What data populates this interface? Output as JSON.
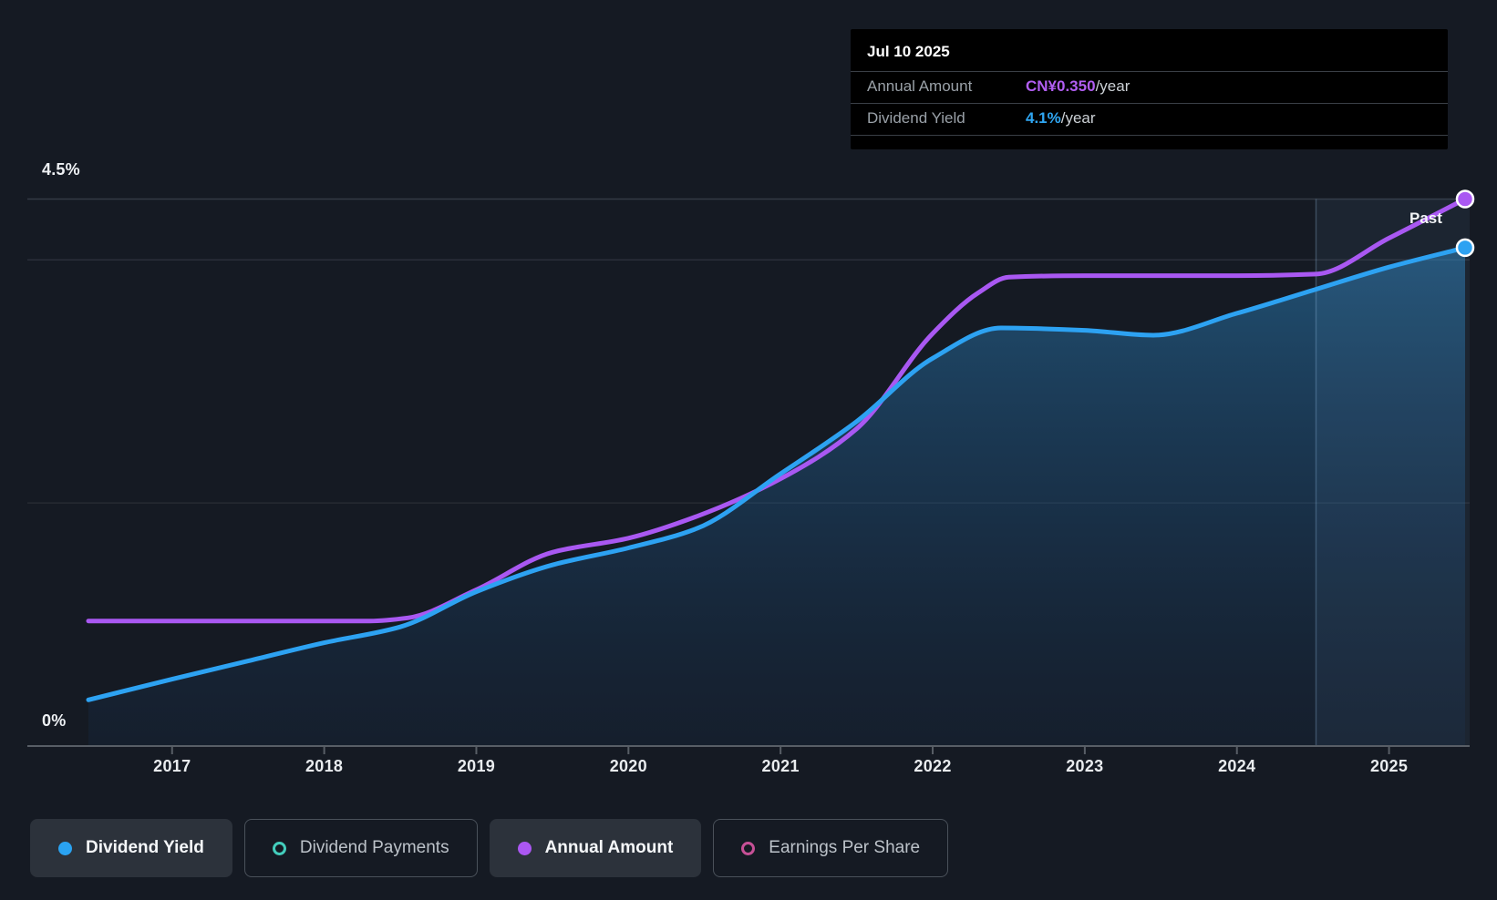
{
  "tooltip": {
    "date": "Jul 10 2025",
    "rows": [
      {
        "label": "Annual Amount",
        "value": "CN¥0.350",
        "suffix": "/year",
        "value_color": "#b15ef2"
      },
      {
        "label": "Dividend Yield",
        "value": "4.1%",
        "suffix": "/year",
        "value_color": "#2fa6f2"
      }
    ]
  },
  "chart_data": {
    "type": "line",
    "x_axis": {
      "ticks": [
        2017,
        2018,
        2019,
        2020,
        2021,
        2022,
        2023,
        2024,
        2025
      ],
      "range": [
        2016.45,
        2025.5
      ]
    },
    "y_axis": {
      "max_label": "4.5%",
      "min_label": "0%",
      "unit": "%",
      "range": [
        0,
        4.5
      ],
      "gridlines_pct": [
        4.5,
        4.0,
        2.0,
        0
      ]
    },
    "past_label": "Past",
    "past_divider_year": 2024.52,
    "series": [
      {
        "name": "Dividend Yield",
        "type": "area-line",
        "unit": "%",
        "color": "#2da2f2",
        "points": [
          [
            2016.45,
            0.38
          ],
          [
            2017,
            0.55
          ],
          [
            2017.5,
            0.7
          ],
          [
            2018,
            0.85
          ],
          [
            2018.5,
            0.98
          ],
          [
            2019,
            1.27
          ],
          [
            2019.5,
            1.49
          ],
          [
            2020,
            1.63
          ],
          [
            2020.45,
            1.79
          ],
          [
            2021,
            2.24
          ],
          [
            2021.5,
            2.67
          ],
          [
            2022,
            3.19
          ],
          [
            2022.45,
            3.44
          ],
          [
            2023,
            3.42
          ],
          [
            2023.45,
            3.38
          ],
          [
            2024,
            3.56
          ],
          [
            2024.5,
            3.75
          ],
          [
            2025,
            3.94
          ],
          [
            2025.5,
            4.1
          ]
        ]
      },
      {
        "name": "Annual Amount",
        "type": "line",
        "unit": "CN¥/year",
        "color": "#a958f2",
        "axis_max": 0.35,
        "points": [
          [
            2016.45,
            0.08
          ],
          [
            2018.3,
            0.08
          ],
          [
            2018.55,
            0.082
          ],
          [
            2019,
            0.1
          ],
          [
            2019.5,
            0.124
          ],
          [
            2020,
            0.133
          ],
          [
            2020.45,
            0.147
          ],
          [
            2021,
            0.171
          ],
          [
            2021.5,
            0.203
          ],
          [
            2022,
            0.264
          ],
          [
            2022.3,
            0.29
          ],
          [
            2022.5,
            0.3
          ],
          [
            2023,
            0.301
          ],
          [
            2024,
            0.301
          ],
          [
            2024.52,
            0.302
          ],
          [
            2025,
            0.325
          ],
          [
            2025.5,
            0.35
          ]
        ]
      }
    ],
    "end_markers": [
      {
        "series": "Annual Amount",
        "x": 2025.5,
        "value": 0.35
      },
      {
        "series": "Dividend Yield",
        "x": 2025.5,
        "value": 4.1
      }
    ]
  },
  "legend": {
    "items": [
      {
        "label": "Dividend Yield",
        "color": "#2aa3f2",
        "style": "filled",
        "active": true
      },
      {
        "label": "Dividend Payments",
        "color": "#43cdbc",
        "style": "ring",
        "active": false
      },
      {
        "label": "Annual Amount",
        "color": "#ab57f2",
        "style": "filled",
        "active": true
      },
      {
        "label": "Earnings Per Share",
        "color": "#c65096",
        "style": "ring",
        "active": false
      }
    ]
  },
  "colors": {
    "background": "#151a23",
    "tooltip_bg": "#000000",
    "yield_line": "#2da2f2",
    "amount_line": "#a958f2",
    "past_region": "rgba(125,185,235,0.07)",
    "axis_line": "#585e66"
  }
}
